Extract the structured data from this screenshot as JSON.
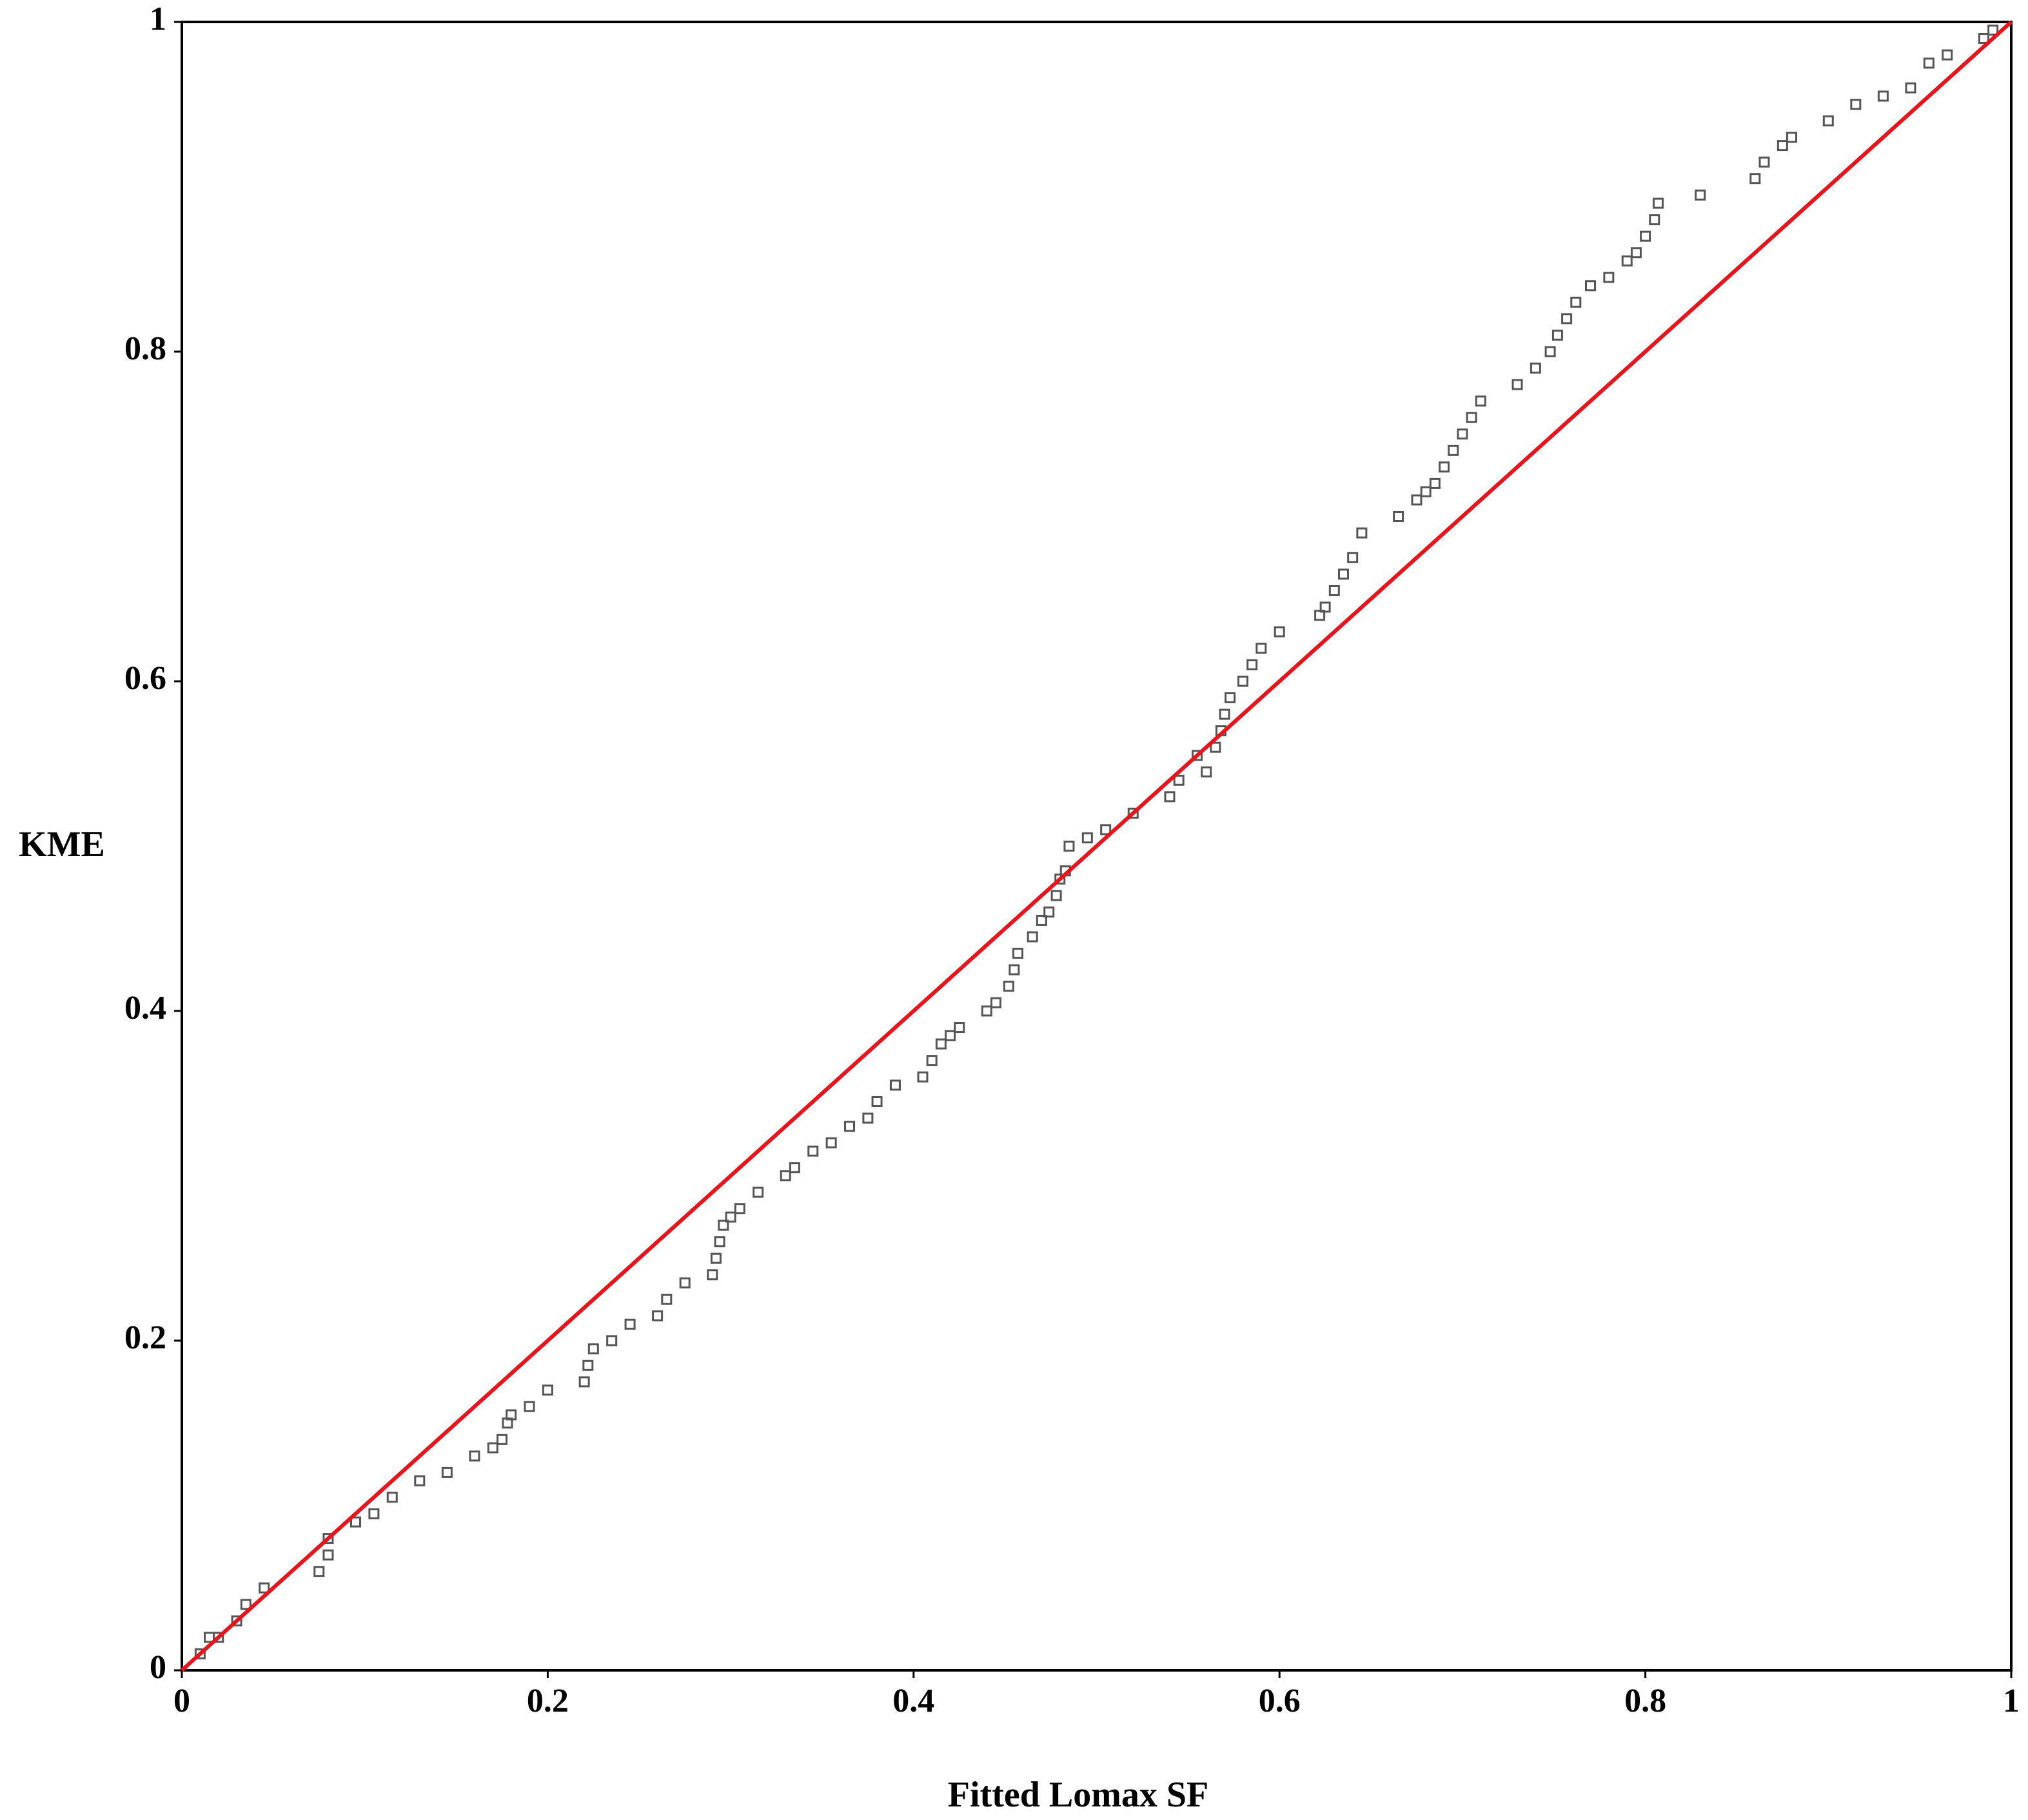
{
  "chart_data": {
    "type": "scatter",
    "x_label": "Fitted Lomax SF",
    "y_label": "KME",
    "xlim": [
      0,
      1
    ],
    "ylim": [
      0,
      1
    ],
    "xticks": [
      0,
      0.2,
      0.4,
      0.6,
      0.8,
      1
    ],
    "yticks": [
      0,
      0.2,
      0.4,
      0.6,
      0.8,
      1
    ],
    "grid": false,
    "series": [
      {
        "type": "scatter",
        "color": "#555555",
        "marker": "square",
        "x": [
          0.01,
          0.015,
          0.02,
          0.03,
          0.035,
          0.045,
          0.075,
          0.08,
          0.08,
          0.095,
          0.105,
          0.115,
          0.13,
          0.145,
          0.16,
          0.17,
          0.175,
          0.178,
          0.18,
          0.19,
          0.2,
          0.22,
          0.222,
          0.225,
          0.235,
          0.245,
          0.26,
          0.265,
          0.275,
          0.29,
          0.292,
          0.294,
          0.296,
          0.3,
          0.305,
          0.315,
          0.33,
          0.335,
          0.345,
          0.355,
          0.365,
          0.375,
          0.38,
          0.39,
          0.405,
          0.41,
          0.415,
          0.42,
          0.425,
          0.44,
          0.445,
          0.452,
          0.455,
          0.457,
          0.465,
          0.47,
          0.474,
          0.478,
          0.48,
          0.483,
          0.485,
          0.495,
          0.505,
          0.52,
          0.54,
          0.545,
          0.555,
          0.56,
          0.565,
          0.568,
          0.57,
          0.573,
          0.58,
          0.585,
          0.59,
          0.6,
          0.622,
          0.625,
          0.63,
          0.635,
          0.64,
          0.645,
          0.665,
          0.675,
          0.68,
          0.685,
          0.69,
          0.695,
          0.7,
          0.705,
          0.71,
          0.73,
          0.74,
          0.748,
          0.752,
          0.757,
          0.762,
          0.77,
          0.78,
          0.79,
          0.795,
          0.8,
          0.805,
          0.807,
          0.83,
          0.86,
          0.865,
          0.875,
          0.88,
          0.9,
          0.915,
          0.93,
          0.945,
          0.955,
          0.965,
          0.985,
          0.99
        ],
        "values": [
          0.01,
          0.02,
          0.02,
          0.03,
          0.04,
          0.05,
          0.06,
          0.07,
          0.08,
          0.09,
          0.095,
          0.105,
          0.115,
          0.12,
          0.13,
          0.135,
          0.14,
          0.15,
          0.155,
          0.16,
          0.17,
          0.175,
          0.185,
          0.195,
          0.2,
          0.21,
          0.215,
          0.225,
          0.235,
          0.24,
          0.25,
          0.26,
          0.27,
          0.275,
          0.28,
          0.29,
          0.3,
          0.305,
          0.315,
          0.32,
          0.33,
          0.335,
          0.345,
          0.355,
          0.36,
          0.37,
          0.38,
          0.385,
          0.39,
          0.4,
          0.405,
          0.415,
          0.425,
          0.435,
          0.445,
          0.455,
          0.46,
          0.47,
          0.48,
          0.485,
          0.5,
          0.505,
          0.51,
          0.52,
          0.53,
          0.54,
          0.555,
          0.545,
          0.56,
          0.57,
          0.58,
          0.59,
          0.6,
          0.61,
          0.62,
          0.63,
          0.64,
          0.645,
          0.655,
          0.665,
          0.675,
          0.69,
          0.7,
          0.71,
          0.715,
          0.72,
          0.73,
          0.74,
          0.75,
          0.76,
          0.77,
          0.78,
          0.79,
          0.8,
          0.81,
          0.82,
          0.83,
          0.84,
          0.845,
          0.855,
          0.86,
          0.87,
          0.88,
          0.89,
          0.895,
          0.905,
          0.915,
          0.925,
          0.93,
          0.94,
          0.95,
          0.955,
          0.96,
          0.975,
          0.98,
          0.99,
          0.995
        ]
      },
      {
        "type": "line",
        "color": "#e8141c",
        "x": [
          0,
          1
        ],
        "values": [
          0,
          1
        ]
      }
    ]
  }
}
